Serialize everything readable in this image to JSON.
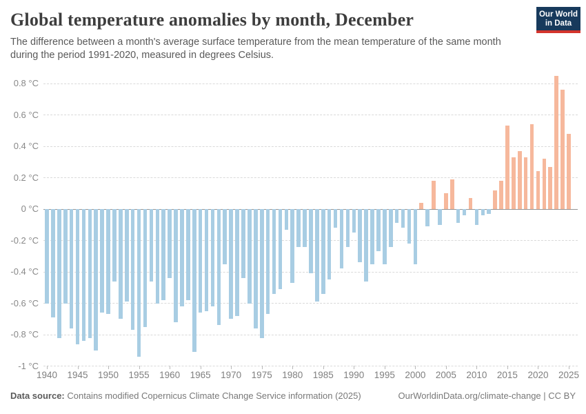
{
  "header": {
    "title": "Global temperature anomalies by month, December",
    "subtitle": "The difference between a month's average surface temperature from the mean temperature of the same month during the period 1991-2020, measured in degrees Celsius.",
    "logo": {
      "line1": "Our World",
      "line2": "in Data"
    }
  },
  "chart_data": {
    "type": "bar",
    "title": "Global temperature anomalies by month, December",
    "x": [
      1940,
      1941,
      1942,
      1943,
      1944,
      1945,
      1946,
      1947,
      1948,
      1949,
      1950,
      1951,
      1952,
      1953,
      1954,
      1955,
      1956,
      1957,
      1958,
      1959,
      1960,
      1961,
      1962,
      1963,
      1964,
      1965,
      1966,
      1967,
      1968,
      1969,
      1970,
      1971,
      1972,
      1973,
      1974,
      1975,
      1976,
      1977,
      1978,
      1979,
      1980,
      1981,
      1982,
      1983,
      1984,
      1985,
      1986,
      1987,
      1988,
      1989,
      1990,
      1991,
      1992,
      1993,
      1994,
      1995,
      1996,
      1997,
      1998,
      1999,
      2000,
      2001,
      2002,
      2003,
      2004,
      2005,
      2006,
      2007,
      2008,
      2009,
      2010,
      2011,
      2012,
      2013,
      2014,
      2015,
      2016,
      2017,
      2018,
      2019,
      2020,
      2021,
      2022,
      2023,
      2024,
      2025
    ],
    "values": [
      -0.6,
      -0.69,
      -0.82,
      -0.6,
      -0.76,
      -0.86,
      -0.84,
      -0.82,
      -0.9,
      -0.66,
      -0.67,
      -0.46,
      -0.7,
      -0.59,
      -0.77,
      -0.94,
      -0.75,
      -0.46,
      -0.6,
      -0.58,
      -0.44,
      -0.72,
      -0.62,
      -0.58,
      -0.91,
      -0.66,
      -0.65,
      -0.62,
      -0.74,
      -0.35,
      -0.7,
      -0.68,
      -0.44,
      -0.6,
      -0.76,
      -0.82,
      -0.67,
      -0.54,
      -0.51,
      -0.13,
      -0.47,
      -0.24,
      -0.24,
      -0.41,
      -0.59,
      -0.54,
      -0.45,
      -0.12,
      -0.38,
      -0.24,
      -0.15,
      -0.34,
      -0.46,
      -0.35,
      -0.27,
      -0.35,
      -0.24,
      -0.09,
      -0.12,
      -0.22,
      -0.35,
      0.04,
      -0.11,
      0.18,
      -0.1,
      0.1,
      0.19,
      -0.09,
      -0.04,
      0.07,
      -0.1,
      -0.04,
      -0.03,
      0.12,
      0.18,
      0.53,
      0.33,
      0.37,
      0.33,
      0.54,
      0.24,
      0.32,
      0.27,
      0.85,
      0.76,
      0.48
    ],
    "ylim": [
      -1.0,
      0.9
    ],
    "y_ticks": [
      {
        "label": "0.8 °C",
        "value": 0.8
      },
      {
        "label": "0.6 °C",
        "value": 0.6
      },
      {
        "label": "0.4 °C",
        "value": 0.4
      },
      {
        "label": "0.2 °C",
        "value": 0.2
      },
      {
        "label": "0 °C",
        "value": 0.0
      },
      {
        "label": "-0.2 °C",
        "value": -0.2
      },
      {
        "label": "-0.4 °C",
        "value": -0.4
      },
      {
        "label": "-0.6 °C",
        "value": -0.6
      },
      {
        "label": "-0.8 °C",
        "value": -0.8
      },
      {
        "label": "-1 °C",
        "value": -1.0
      }
    ],
    "x_ticks": [
      1940,
      1945,
      1950,
      1955,
      1960,
      1965,
      1970,
      1975,
      1980,
      1985,
      1990,
      1995,
      2000,
      2005,
      2010,
      2015,
      2020,
      2025
    ],
    "grid": "dashed-horizontal",
    "legend": "none",
    "colors": {
      "positive": "#f6b89c",
      "negative": "#a8cde3",
      "zero_line": "#949494"
    }
  },
  "footer": {
    "source_label": "Data source:",
    "source_text": " Contains modified Copernicus Climate Change Service information (2025)",
    "link_text": "OurWorldinData.org/climate-change | CC BY"
  }
}
